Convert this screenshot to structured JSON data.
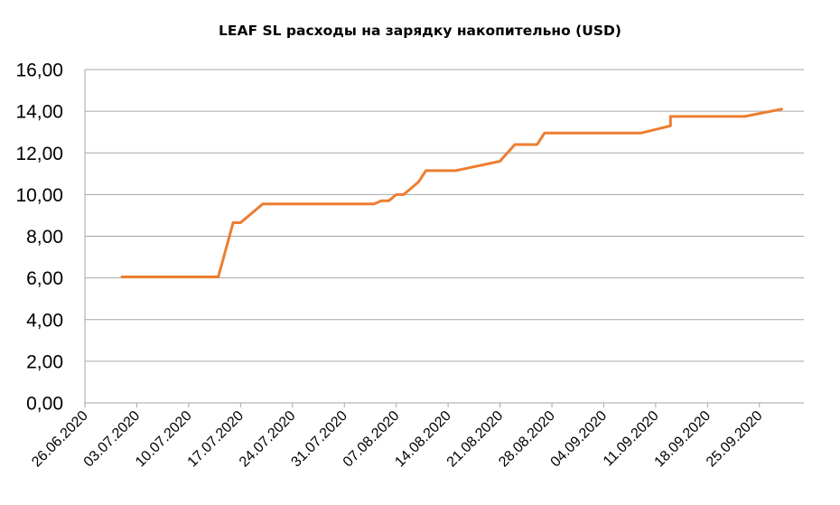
{
  "chart_data": {
    "type": "line",
    "title": "LEAF SL расходы на зарядку накопительно (USD)",
    "xlabel": "",
    "ylabel": "",
    "ylim": [
      0,
      16
    ],
    "yticks": [
      "0,00",
      "2,00",
      "4,00",
      "6,00",
      "8,00",
      "10,00",
      "12,00",
      "14,00",
      "16,00"
    ],
    "ytick_values": [
      0,
      2,
      4,
      6,
      8,
      10,
      12,
      14,
      16
    ],
    "xlim": [
      "2020-06-26",
      "2020-10-01"
    ],
    "xticks": [
      "26.06.2020",
      "03.07.2020",
      "10.07.2020",
      "17.07.2020",
      "24.07.2020",
      "31.07.2020",
      "07.08.2020",
      "14.08.2020",
      "21.08.2020",
      "28.08.2020",
      "04.09.2020",
      "11.09.2020",
      "18.09.2020",
      "25.09.2020"
    ],
    "xtick_dates": [
      "2020-06-26",
      "2020-07-03",
      "2020-07-10",
      "2020-07-17",
      "2020-07-24",
      "2020-07-31",
      "2020-08-07",
      "2020-08-14",
      "2020-08-21",
      "2020-08-28",
      "2020-09-04",
      "2020-09-11",
      "2020-09-18",
      "2020-09-25"
    ],
    "grid": true,
    "legend": "none",
    "series": [
      {
        "color": "#ed7d31",
        "x": [
          "2020-07-01",
          "2020-07-14",
          "2020-07-16",
          "2020-07-17",
          "2020-07-20",
          "2020-08-04",
          "2020-08-05",
          "2020-08-06",
          "2020-08-07",
          "2020-08-08",
          "2020-08-10",
          "2020-08-11",
          "2020-08-15",
          "2020-08-21",
          "2020-08-23",
          "2020-08-26",
          "2020-08-27",
          "2020-09-09",
          "2020-09-13",
          "2020-09-13",
          "2020-09-23",
          "2020-09-28"
        ],
        "values": [
          6.05,
          6.05,
          8.65,
          8.65,
          9.55,
          9.55,
          9.7,
          9.7,
          10.0,
          10.0,
          10.6,
          11.15,
          11.15,
          11.6,
          12.4,
          12.4,
          12.95,
          12.95,
          13.3,
          13.75,
          13.75,
          14.1
        ]
      }
    ]
  }
}
